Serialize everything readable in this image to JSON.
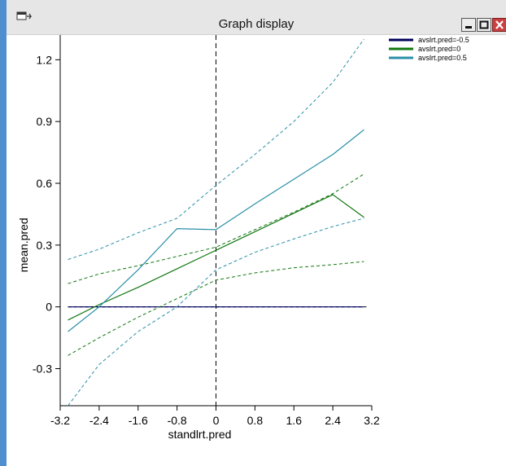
{
  "window": {
    "title": "Graph display",
    "accent_color": "#4f8fcf",
    "icons": [
      "app-icon",
      "minimize-icon",
      "maximize-icon",
      "close-icon"
    ]
  },
  "chart_data": {
    "type": "line",
    "xlabel": "standlrt.pred",
    "ylabel": "mean.pred",
    "xlim": [
      -3.2,
      3.2
    ],
    "ylim": [
      -0.48,
      1.32
    ],
    "xticks": [
      -3.2,
      -2.4,
      -1.6,
      -0.8,
      0,
      0.8,
      1.6,
      2.4,
      3.2
    ],
    "xtick_labels": [
      "-3.2",
      "-2.4",
      "-1.6",
      "-0.8",
      "0",
      "0.8",
      "1.6",
      "2.4",
      "3.2"
    ],
    "yticks": [
      -0.3,
      0,
      0.3,
      0.6,
      0.9,
      1.2
    ],
    "ytick_labels": [
      "-0.3",
      "0",
      "0.3",
      "0.6",
      "0.9",
      "1.2"
    ],
    "reference_line_x": 0,
    "grid": false,
    "legend_position": "top-right outside",
    "series": [
      {
        "name": "avslrt.pred=-0.5",
        "color": "#00005a",
        "x": [
          -3.04,
          3.04
        ],
        "y": [
          0,
          0
        ],
        "lower": [
          0,
          0
        ],
        "upper": [
          0,
          0
        ]
      },
      {
        "name": "avslrt.pred=0",
        "color": "#117711",
        "x": [
          -3.04,
          -2.4,
          -1.6,
          -0.8,
          0,
          0.8,
          1.6,
          2.4,
          3.04
        ],
        "y": [
          -0.064,
          0.011,
          0.095,
          0.185,
          0.275,
          0.365,
          0.455,
          0.545,
          0.435
        ],
        "lower": [
          -0.236,
          -0.15,
          -0.05,
          0.04,
          0.13,
          0.165,
          0.19,
          0.205,
          0.22
        ],
        "upper": [
          0.113,
          0.16,
          0.2,
          0.245,
          0.29,
          0.375,
          0.46,
          0.55,
          0.645
        ]
      },
      {
        "name": "avslrt.pred=0.5",
        "color": "#2a8fa8",
        "x": [
          -3.04,
          -2.4,
          -1.6,
          -0.8,
          0,
          0.8,
          1.6,
          2.4,
          3.04
        ],
        "y": [
          -0.12,
          0.0,
          0.18,
          0.38,
          0.375,
          0.5,
          0.62,
          0.74,
          0.86
        ],
        "lower": [
          -0.48,
          -0.28,
          -0.12,
          0.0,
          0.18,
          0.265,
          0.33,
          0.39,
          0.43
        ],
        "upper": [
          0.23,
          0.28,
          0.36,
          0.43,
          0.59,
          0.74,
          0.9,
          1.09,
          1.3
        ]
      }
    ]
  }
}
